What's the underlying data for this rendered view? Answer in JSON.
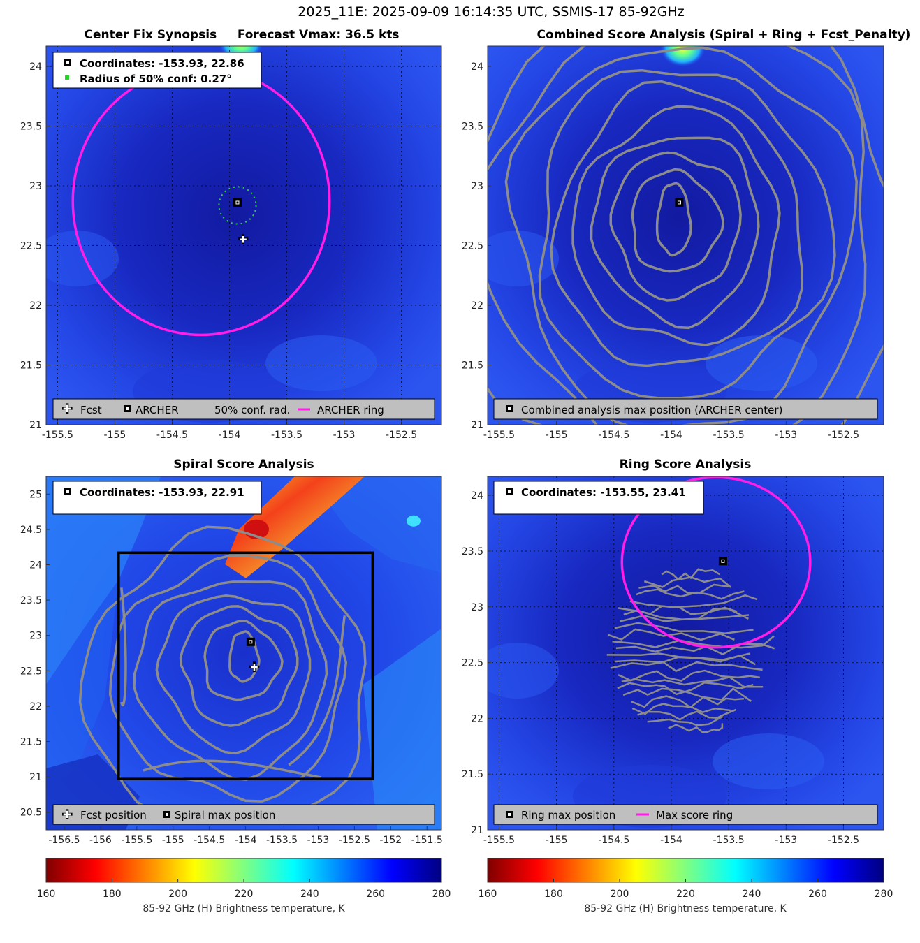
{
  "figure": {
    "suptitle": "2025_11E: 2025-09-09 16:14:35 UTC, SSMIS-17 85-92GHz"
  },
  "chart_data": [
    {
      "type": "heatmap",
      "panel": "center-fix",
      "title": "Center Fix Synopsis     Forecast Vmax: 36.5 kts",
      "xlim": [
        -155.6,
        -152.15
      ],
      "ylim": [
        21.0,
        24.17
      ],
      "xticks": [
        -155.5,
        -155,
        -154.5,
        -154,
        -153.5,
        -153,
        -152.5
      ],
      "xtick_labels": [
        "-155.5",
        "-155",
        "-154.5",
        "-154",
        "-153.5",
        "-153",
        "-152.5"
      ],
      "yticks": [
        21,
        21.5,
        22,
        22.5,
        23,
        23.5,
        24
      ],
      "ytick_labels": [
        "21",
        "21.5",
        "22",
        "22.5",
        "23",
        "23.5",
        "24"
      ],
      "info": [
        "Coordinates: -153.93, 22.86",
        "Radius of 50% conf: 0.27°"
      ],
      "legend": [
        "Fcst",
        "ARCHER",
        "50% conf. rad.",
        "ARCHER ring"
      ],
      "archer_center": [
        -153.93,
        22.86
      ],
      "fcst_position": [
        -153.88,
        22.56
      ],
      "conf_radius_deg": 0.27,
      "ring_radius_deg": 1.12,
      "hot_spot": [
        -153.9,
        24.2
      ]
    },
    {
      "type": "heatmap",
      "panel": "combined",
      "title": "Combined Score Analysis (Spiral + Ring + Fcst_Penalty)",
      "xlim": [
        -155.6,
        -152.15
      ],
      "ylim": [
        21.0,
        24.17
      ],
      "xticks": [
        -155.5,
        -155,
        -154.5,
        -154,
        -153.5,
        -153,
        -152.5
      ],
      "xtick_labels": [
        "-155.5",
        "-155",
        "-154.5",
        "-154",
        "-153.5",
        "-153",
        "-152.5"
      ],
      "yticks": [
        21,
        21.5,
        22,
        22.5,
        23,
        23.5,
        24
      ],
      "ytick_labels": [
        "21",
        "21.5",
        "22",
        "22.5",
        "23",
        "23.5",
        "24"
      ],
      "legend": [
        "Combined analysis max position (ARCHER center)"
      ],
      "max_position": [
        -153.93,
        22.86
      ],
      "contour_radii_deg": [
        0.26,
        0.42,
        0.6,
        0.78,
        0.97,
        1.17,
        1.38,
        1.6,
        1.84,
        2.1
      ],
      "hot_spot": [
        -153.9,
        24.15
      ]
    },
    {
      "type": "heatmap",
      "panel": "spiral",
      "title": "Spiral Score Analysis",
      "xlim": [
        -156.75,
        -151.3
      ],
      "ylim": [
        20.25,
        25.25
      ],
      "xticks": [
        -156.5,
        -156,
        -155.5,
        -155,
        -154.5,
        -154,
        -153.5,
        -153,
        -152.5,
        -152,
        -151.5
      ],
      "xtick_labels": [
        "-156.5",
        "-156",
        "-155.5",
        "-155",
        "-154.5",
        "-154",
        "-153.5",
        "-153",
        "-152.5",
        "-152",
        "-151.5"
      ],
      "yticks": [
        20.5,
        21,
        21.5,
        22,
        22.5,
        23,
        23.5,
        24,
        24.5,
        25
      ],
      "ytick_labels": [
        "20.5",
        "21",
        "21.5",
        "22",
        "22.5",
        "23",
        "23.5",
        "24",
        "24.5",
        "25"
      ],
      "info": [
        "Coordinates: -153.93, 22.91"
      ],
      "legend": [
        "Fcst position",
        "Spiral max position"
      ],
      "max_position": [
        -153.93,
        22.91
      ],
      "fcst_position": [
        -153.88,
        22.56
      ],
      "search_box": {
        "lon": [
          -155.75,
          -152.25
        ],
        "lat": [
          20.97,
          24.17
        ]
      },
      "contour_radii_deg": [
        0.28,
        0.52,
        0.78,
        1.03,
        1.3,
        1.6,
        1.95
      ],
      "hot_spot": [
        -153.9,
        24.6
      ]
    },
    {
      "type": "heatmap",
      "panel": "ring",
      "title": "Ring Score Analysis",
      "xlim": [
        -155.6,
        -152.15
      ],
      "ylim": [
        21.0,
        24.17
      ],
      "xticks": [
        -155.5,
        -155,
        -154.5,
        -154,
        -153.5,
        -153,
        -152.5
      ],
      "xtick_labels": [
        "-155.5",
        "-155",
        "-154.5",
        "-154",
        "-153.5",
        "-153",
        "-152.5"
      ],
      "yticks": [
        21,
        21.5,
        22,
        22.5,
        23,
        23.5,
        24
      ],
      "ytick_labels": [
        "21",
        "21.5",
        "22",
        "22.5",
        "23",
        "23.5",
        "24"
      ],
      "info": [
        "Coordinates: -153.55, 23.41"
      ],
      "legend": [
        "Ring max position",
        "Max score ring"
      ],
      "max_position": [
        -153.55,
        23.41
      ],
      "ring_center": [
        -153.61,
        23.4
      ],
      "ring_radius_deg": 0.82,
      "contour_region_center": [
        -153.85,
        22.6
      ],
      "contour_region_radius_deg": 0.75
    }
  ],
  "colorbar": {
    "label": "85-92 GHz (H) Brightness temperature, K",
    "range": [
      160,
      280
    ],
    "ticks": [
      "160",
      "180",
      "200",
      "220",
      "240",
      "260",
      "280"
    ],
    "stops": [
      "#800000",
      "#ff0000",
      "#ff8000",
      "#ffff00",
      "#80ff80",
      "#00ffff",
      "#0080ff",
      "#0000ff",
      "#000080"
    ]
  },
  "colors": {
    "field": "#1f3fe0",
    "field_dark": "#0f1aa8",
    "ring": "#ff1ee6",
    "contour": "#8c8c8c",
    "conf": "#2bd42b"
  }
}
